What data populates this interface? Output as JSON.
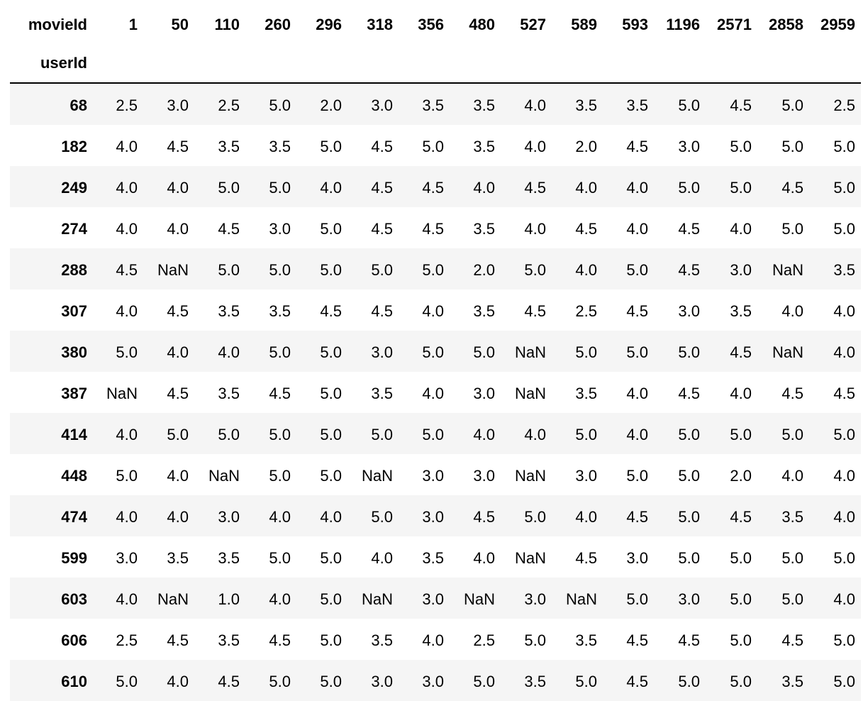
{
  "table": {
    "columns_name": "movieId",
    "index_name": "userId",
    "columns": [
      "1",
      "50",
      "110",
      "260",
      "296",
      "318",
      "356",
      "480",
      "527",
      "589",
      "593",
      "1196",
      "2571",
      "2858",
      "2959"
    ],
    "rows": [
      {
        "index": "68",
        "values": [
          "2.5",
          "3.0",
          "2.5",
          "5.0",
          "2.0",
          "3.0",
          "3.5",
          "3.5",
          "4.0",
          "3.5",
          "3.5",
          "5.0",
          "4.5",
          "5.0",
          "2.5"
        ]
      },
      {
        "index": "182",
        "values": [
          "4.0",
          "4.5",
          "3.5",
          "3.5",
          "5.0",
          "4.5",
          "5.0",
          "3.5",
          "4.0",
          "2.0",
          "4.5",
          "3.0",
          "5.0",
          "5.0",
          "5.0"
        ]
      },
      {
        "index": "249",
        "values": [
          "4.0",
          "4.0",
          "5.0",
          "5.0",
          "4.0",
          "4.5",
          "4.5",
          "4.0",
          "4.5",
          "4.0",
          "4.0",
          "5.0",
          "5.0",
          "4.5",
          "5.0"
        ]
      },
      {
        "index": "274",
        "values": [
          "4.0",
          "4.0",
          "4.5",
          "3.0",
          "5.0",
          "4.5",
          "4.5",
          "3.5",
          "4.0",
          "4.5",
          "4.0",
          "4.5",
          "4.0",
          "5.0",
          "5.0"
        ]
      },
      {
        "index": "288",
        "values": [
          "4.5",
          "NaN",
          "5.0",
          "5.0",
          "5.0",
          "5.0",
          "5.0",
          "2.0",
          "5.0",
          "4.0",
          "5.0",
          "4.5",
          "3.0",
          "NaN",
          "3.5"
        ]
      },
      {
        "index": "307",
        "values": [
          "4.0",
          "4.5",
          "3.5",
          "3.5",
          "4.5",
          "4.5",
          "4.0",
          "3.5",
          "4.5",
          "2.5",
          "4.5",
          "3.0",
          "3.5",
          "4.0",
          "4.0"
        ]
      },
      {
        "index": "380",
        "values": [
          "5.0",
          "4.0",
          "4.0",
          "5.0",
          "5.0",
          "3.0",
          "5.0",
          "5.0",
          "NaN",
          "5.0",
          "5.0",
          "5.0",
          "4.5",
          "NaN",
          "4.0"
        ]
      },
      {
        "index": "387",
        "values": [
          "NaN",
          "4.5",
          "3.5",
          "4.5",
          "5.0",
          "3.5",
          "4.0",
          "3.0",
          "NaN",
          "3.5",
          "4.0",
          "4.5",
          "4.0",
          "4.5",
          "4.5"
        ]
      },
      {
        "index": "414",
        "values": [
          "4.0",
          "5.0",
          "5.0",
          "5.0",
          "5.0",
          "5.0",
          "5.0",
          "4.0",
          "4.0",
          "5.0",
          "4.0",
          "5.0",
          "5.0",
          "5.0",
          "5.0"
        ]
      },
      {
        "index": "448",
        "values": [
          "5.0",
          "4.0",
          "NaN",
          "5.0",
          "5.0",
          "NaN",
          "3.0",
          "3.0",
          "NaN",
          "3.0",
          "5.0",
          "5.0",
          "2.0",
          "4.0",
          "4.0"
        ]
      },
      {
        "index": "474",
        "values": [
          "4.0",
          "4.0",
          "3.0",
          "4.0",
          "4.0",
          "5.0",
          "3.0",
          "4.5",
          "5.0",
          "4.0",
          "4.5",
          "5.0",
          "4.5",
          "3.5",
          "4.0"
        ]
      },
      {
        "index": "599",
        "values": [
          "3.0",
          "3.5",
          "3.5",
          "5.0",
          "5.0",
          "4.0",
          "3.5",
          "4.0",
          "NaN",
          "4.5",
          "3.0",
          "5.0",
          "5.0",
          "5.0",
          "5.0"
        ]
      },
      {
        "index": "603",
        "values": [
          "4.0",
          "NaN",
          "1.0",
          "4.0",
          "5.0",
          "NaN",
          "3.0",
          "NaN",
          "3.0",
          "NaN",
          "5.0",
          "3.0",
          "5.0",
          "5.0",
          "4.0"
        ]
      },
      {
        "index": "606",
        "values": [
          "2.5",
          "4.5",
          "3.5",
          "4.5",
          "5.0",
          "3.5",
          "4.0",
          "2.5",
          "5.0",
          "3.5",
          "4.5",
          "4.5",
          "5.0",
          "4.5",
          "5.0"
        ]
      },
      {
        "index": "610",
        "values": [
          "5.0",
          "4.0",
          "4.5",
          "5.0",
          "5.0",
          "3.0",
          "3.0",
          "5.0",
          "3.5",
          "5.0",
          "4.5",
          "5.0",
          "5.0",
          "3.5",
          "5.0"
        ]
      }
    ]
  }
}
